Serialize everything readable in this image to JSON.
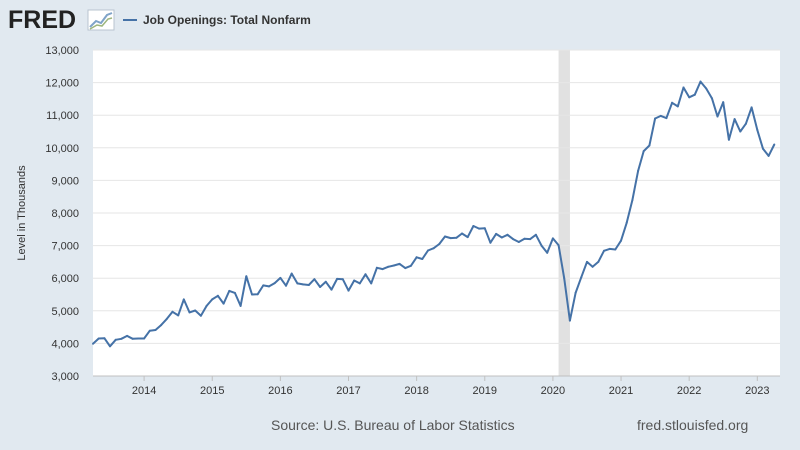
{
  "brand": {
    "logo_text": "FRED",
    "logo_icon": "line-graph-icon"
  },
  "chart_data": {
    "type": "line",
    "title": "Job Openings: Total Nonfarm",
    "ylabel": "Level in Thousands",
    "xlabel": "",
    "ylim": [
      3000,
      13000
    ],
    "yticks": [
      3000,
      4000,
      5000,
      6000,
      7000,
      8000,
      9000,
      10000,
      11000,
      12000,
      13000
    ],
    "ytick_labels": [
      "3,000",
      "4,000",
      "5,000",
      "6,000",
      "7,000",
      "8,000",
      "9,000",
      "10,000",
      "11,000",
      "12,000",
      "13,000"
    ],
    "xlim": [
      2013.25,
      2023.333
    ],
    "xticks": [
      2014,
      2015,
      2016,
      2017,
      2018,
      2019,
      2020,
      2021,
      2022,
      2023
    ],
    "xtick_labels": [
      "2014",
      "2015",
      "2016",
      "2017",
      "2018",
      "2019",
      "2020",
      "2021",
      "2022",
      "2023"
    ],
    "grid": true,
    "recession": {
      "start": 2020.083,
      "end": 2020.25
    },
    "series": [
      {
        "name": "Job Openings: Total Nonfarm",
        "color": "#4572a7",
        "x_start": 2013.25,
        "x_step": 0.08333,
        "values": [
          3990,
          4150,
          4160,
          3910,
          4110,
          4140,
          4230,
          4140,
          4150,
          4150,
          4390,
          4410,
          4560,
          4750,
          4970,
          4860,
          5350,
          4950,
          5010,
          4850,
          5150,
          5350,
          5460,
          5220,
          5610,
          5550,
          5150,
          6060,
          5500,
          5510,
          5780,
          5750,
          5850,
          6010,
          5770,
          6140,
          5840,
          5810,
          5790,
          5970,
          5730,
          5890,
          5650,
          5980,
          5970,
          5620,
          5930,
          5840,
          6120,
          5840,
          6320,
          6280,
          6350,
          6390,
          6440,
          6310,
          6380,
          6640,
          6590,
          6850,
          6920,
          7050,
          7280,
          7230,
          7240,
          7370,
          7260,
          7600,
          7520,
          7530,
          7090,
          7360,
          7250,
          7330,
          7200,
          7110,
          7210,
          7200,
          7330,
          7000,
          6780,
          7220,
          7010,
          6000,
          4700,
          5550,
          6030,
          6500,
          6350,
          6500,
          6840,
          6900,
          6880,
          7150,
          7700,
          8400,
          9290,
          9900,
          10070,
          10900,
          10980,
          10910,
          11380,
          11270,
          11850,
          11550,
          11630,
          12030,
          11820,
          11520,
          10960,
          11400,
          10250,
          10880,
          10500,
          10740,
          11240,
          10550,
          9970,
          9750,
          10100
        ]
      }
    ]
  },
  "footer": {
    "source": "Source: U.S. Bureau of Labor Statistics",
    "url": "fred.stlouisfed.org"
  }
}
